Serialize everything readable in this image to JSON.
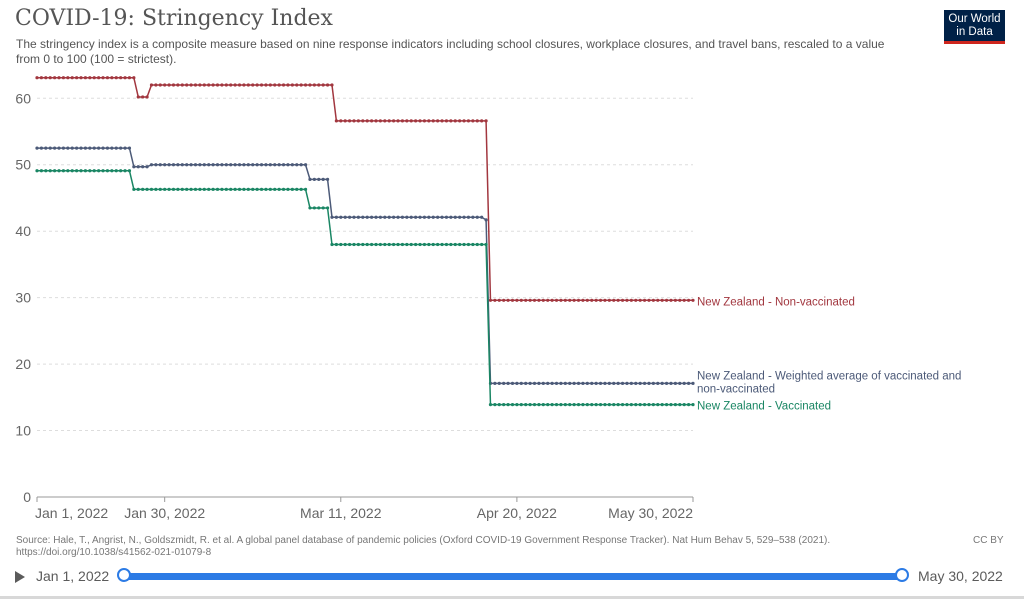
{
  "header": {
    "title": "COVID-19: Stringency Index",
    "subtitle": "The stringency index is a composite measure based on nine response indicators including school closures, workplace closures, and travel bans, rescaled to a value from 0 to 100 (100 = strictest).",
    "logo_line1": "Our World",
    "logo_line2": "in Data"
  },
  "footer": {
    "source": "Source: Hale, T., Angrist, N., Goldszmidt, R. et al. A global panel database of pandemic policies (Oxford COVID-19 Government Response Tracker). Nat Hum Behav 5, 529–538 (2021). https://doi.org/10.1038/s41562-021-01079-8",
    "license": "CC BY"
  },
  "timeline": {
    "start_label": "Jan 1, 2022",
    "end_label": "May 30, 2022"
  },
  "colors": {
    "non_vaccinated": "#a2373f",
    "weighted": "#4c5a78",
    "vaccinated": "#1a8664",
    "grid": "#dddddd",
    "slider": "#2c7be5"
  },
  "chart_data": {
    "type": "line",
    "x_domain": [
      "2022-01-01",
      "2022-05-30"
    ],
    "ylim": [
      0,
      62
    ],
    "yticks": [
      0,
      10,
      20,
      30,
      40,
      50,
      60
    ],
    "xticks": [
      {
        "date": "2022-01-01",
        "label": "Jan 1, 2022"
      },
      {
        "date": "2022-01-30",
        "label": "Jan 30, 2022"
      },
      {
        "date": "2022-03-11",
        "label": "Mar 11, 2022"
      },
      {
        "date": "2022-04-20",
        "label": "Apr 20, 2022"
      },
      {
        "date": "2022-05-30",
        "label": "May 30, 2022"
      }
    ],
    "series": [
      {
        "name": "New Zealand - Non-vaccinated",
        "color": "#a2373f",
        "steps": [
          {
            "from": "2022-01-01",
            "to": "2022-01-23",
            "value": 63.1
          },
          {
            "from": "2022-01-24",
            "to": "2022-01-26",
            "value": 60.2
          },
          {
            "from": "2022-01-27",
            "to": "2022-03-09",
            "value": 62.0
          },
          {
            "from": "2022-03-10",
            "to": "2022-04-13",
            "value": 56.6
          },
          {
            "from": "2022-04-14",
            "to": "2022-05-30",
            "value": 29.6
          }
        ]
      },
      {
        "name": "New Zealand - Weighted average of vaccinated and non-vaccinated",
        "color": "#4c5a78",
        "steps": [
          {
            "from": "2022-01-01",
            "to": "2022-01-22",
            "value": 52.5
          },
          {
            "from": "2022-01-23",
            "to": "2022-01-26",
            "value": 49.7
          },
          {
            "from": "2022-01-27",
            "to": "2022-03-03",
            "value": 50.0
          },
          {
            "from": "2022-03-04",
            "to": "2022-03-08",
            "value": 47.8
          },
          {
            "from": "2022-03-09",
            "to": "2022-04-12",
            "value": 42.1
          },
          {
            "from": "2022-04-13",
            "to": "2022-04-13",
            "value": 41.7
          },
          {
            "from": "2022-04-14",
            "to": "2022-05-30",
            "value": 17.1
          }
        ]
      },
      {
        "name": "New Zealand - Vaccinated",
        "color": "#1a8664",
        "steps": [
          {
            "from": "2022-01-01",
            "to": "2022-01-22",
            "value": 49.1
          },
          {
            "from": "2022-01-23",
            "to": "2022-03-03",
            "value": 46.3
          },
          {
            "from": "2022-03-04",
            "to": "2022-03-08",
            "value": 43.5
          },
          {
            "from": "2022-03-09",
            "to": "2022-04-13",
            "value": 38.0
          },
          {
            "from": "2022-04-14",
            "to": "2022-05-30",
            "value": 13.9
          }
        ]
      }
    ]
  }
}
